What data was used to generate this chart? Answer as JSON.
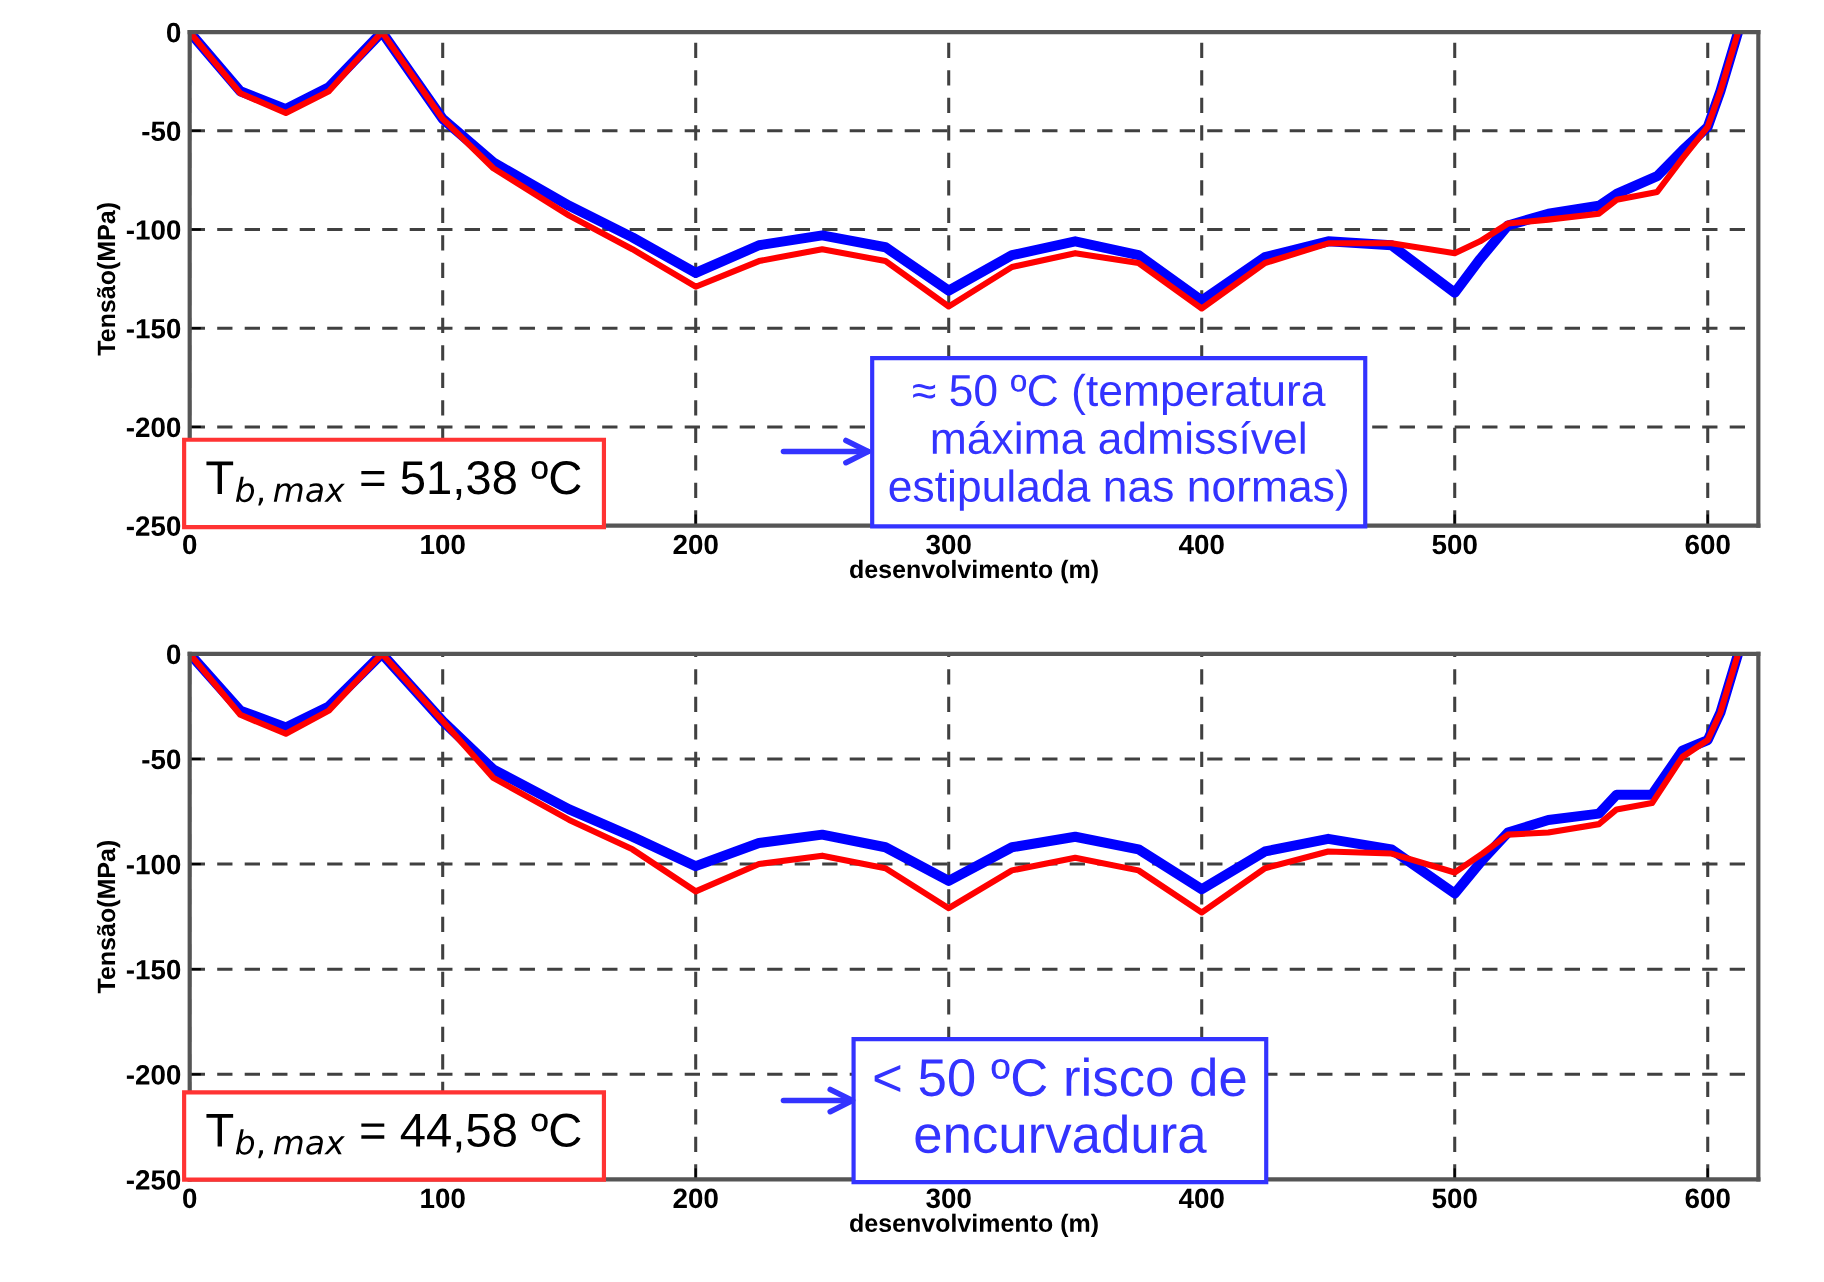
{
  "chart_data": [
    {
      "type": "line",
      "xlabel": "desenvolvimento (m)",
      "ylabel": "Tensão(MPa)",
      "xlim": [
        0,
        620
      ],
      "ylim": [
        -250,
        0
      ],
      "xticks": [
        0,
        100,
        200,
        300,
        400,
        500,
        600
      ],
      "yticks": [
        -250,
        -200,
        -150,
        -100,
        -50,
        0
      ],
      "grid": true,
      "line_style": "solid",
      "annotations": [
        "T$_{b,max}$ = 51,38 ºC",
        "≈ 50 ºC (temperatura\nmáxima admissível\nestipulada nas normas)"
      ],
      "series": [
        {
          "color": "#0000ff",
          "x": [
            0,
            20,
            38,
            55,
            76,
            100,
            120,
            150,
            175,
            200,
            225,
            250,
            275,
            300,
            325,
            350,
            375,
            400,
            425,
            450,
            475,
            500,
            510,
            521,
            537,
            557,
            564,
            580,
            590,
            600,
            605,
            612
          ],
          "values": [
            0,
            -30,
            -39,
            -28,
            0,
            -44,
            -66,
            -88,
            -104,
            -122,
            -108,
            -103,
            -109,
            -131,
            -113,
            -106,
            -113,
            -136,
            -114,
            -106,
            -108,
            -132,
            -115,
            -98,
            -92,
            -88,
            -82,
            -73,
            -60,
            -48,
            -30,
            0
          ]
        },
        {
          "color": "#ff0000",
          "x": [
            0,
            20,
            38,
            55,
            76,
            100,
            120,
            150,
            175,
            200,
            225,
            250,
            275,
            300,
            325,
            350,
            375,
            400,
            425,
            450,
            475,
            500,
            510,
            521,
            537,
            557,
            564,
            580,
            590,
            600,
            605,
            612
          ],
          "values": [
            0,
            -31,
            -41,
            -30,
            0,
            -44,
            -69,
            -93,
            -110,
            -129,
            -116,
            -110,
            -116,
            -139,
            -119,
            -112,
            -117,
            -140,
            -117,
            -107,
            -107,
            -112,
            -106,
            -97,
            -95,
            -92,
            -85,
            -81,
            -64,
            -48,
            -30,
            0
          ]
        }
      ]
    },
    {
      "type": "line",
      "xlabel": "desenvolvimento (m)",
      "ylabel": "Tensão(MPa)",
      "xlim": [
        0,
        620
      ],
      "ylim": [
        -250,
        0
      ],
      "xticks": [
        0,
        100,
        200,
        300,
        400,
        500,
        600
      ],
      "yticks": [
        -250,
        -200,
        -150,
        -100,
        -50,
        0
      ],
      "grid": true,
      "line_style": "solid",
      "annotations": [
        "T$_{b,max}$ = 44,58 ºC",
        "< 50 ºC risco de\nencurvadura"
      ],
      "series": [
        {
          "color": "#0000ff",
          "x": [
            0,
            20,
            38,
            55,
            76,
            100,
            120,
            150,
            175,
            200,
            225,
            250,
            275,
            300,
            325,
            350,
            375,
            400,
            425,
            450,
            475,
            500,
            511,
            521,
            537,
            557,
            564,
            578,
            590,
            600,
            605,
            612
          ],
          "values": [
            0,
            -27,
            -35,
            -25,
            0,
            -32,
            -55,
            -74,
            -87,
            -101,
            -90,
            -86,
            -92,
            -108,
            -92,
            -87,
            -93,
            -112,
            -94,
            -88,
            -93,
            -114,
            -98,
            -85,
            -79,
            -76,
            -67,
            -67,
            -46,
            -41,
            -28,
            0
          ]
        },
        {
          "color": "#ff0000",
          "x": [
            0,
            20,
            38,
            55,
            76,
            100,
            120,
            150,
            175,
            200,
            225,
            250,
            275,
            300,
            325,
            350,
            375,
            400,
            425,
            450,
            475,
            500,
            511,
            521,
            537,
            557,
            564,
            578,
            590,
            600,
            605,
            612
          ],
          "values": [
            0,
            -29,
            -38,
            -27,
            0,
            -32,
            -59,
            -79,
            -93,
            -113,
            -100,
            -96,
            -102,
            -121,
            -103,
            -97,
            -103,
            -123,
            -102,
            -94,
            -95,
            -104,
            -95,
            -86,
            -85,
            -81,
            -74,
            -71,
            -49,
            -41,
            -28,
            0
          ]
        }
      ]
    }
  ]
}
